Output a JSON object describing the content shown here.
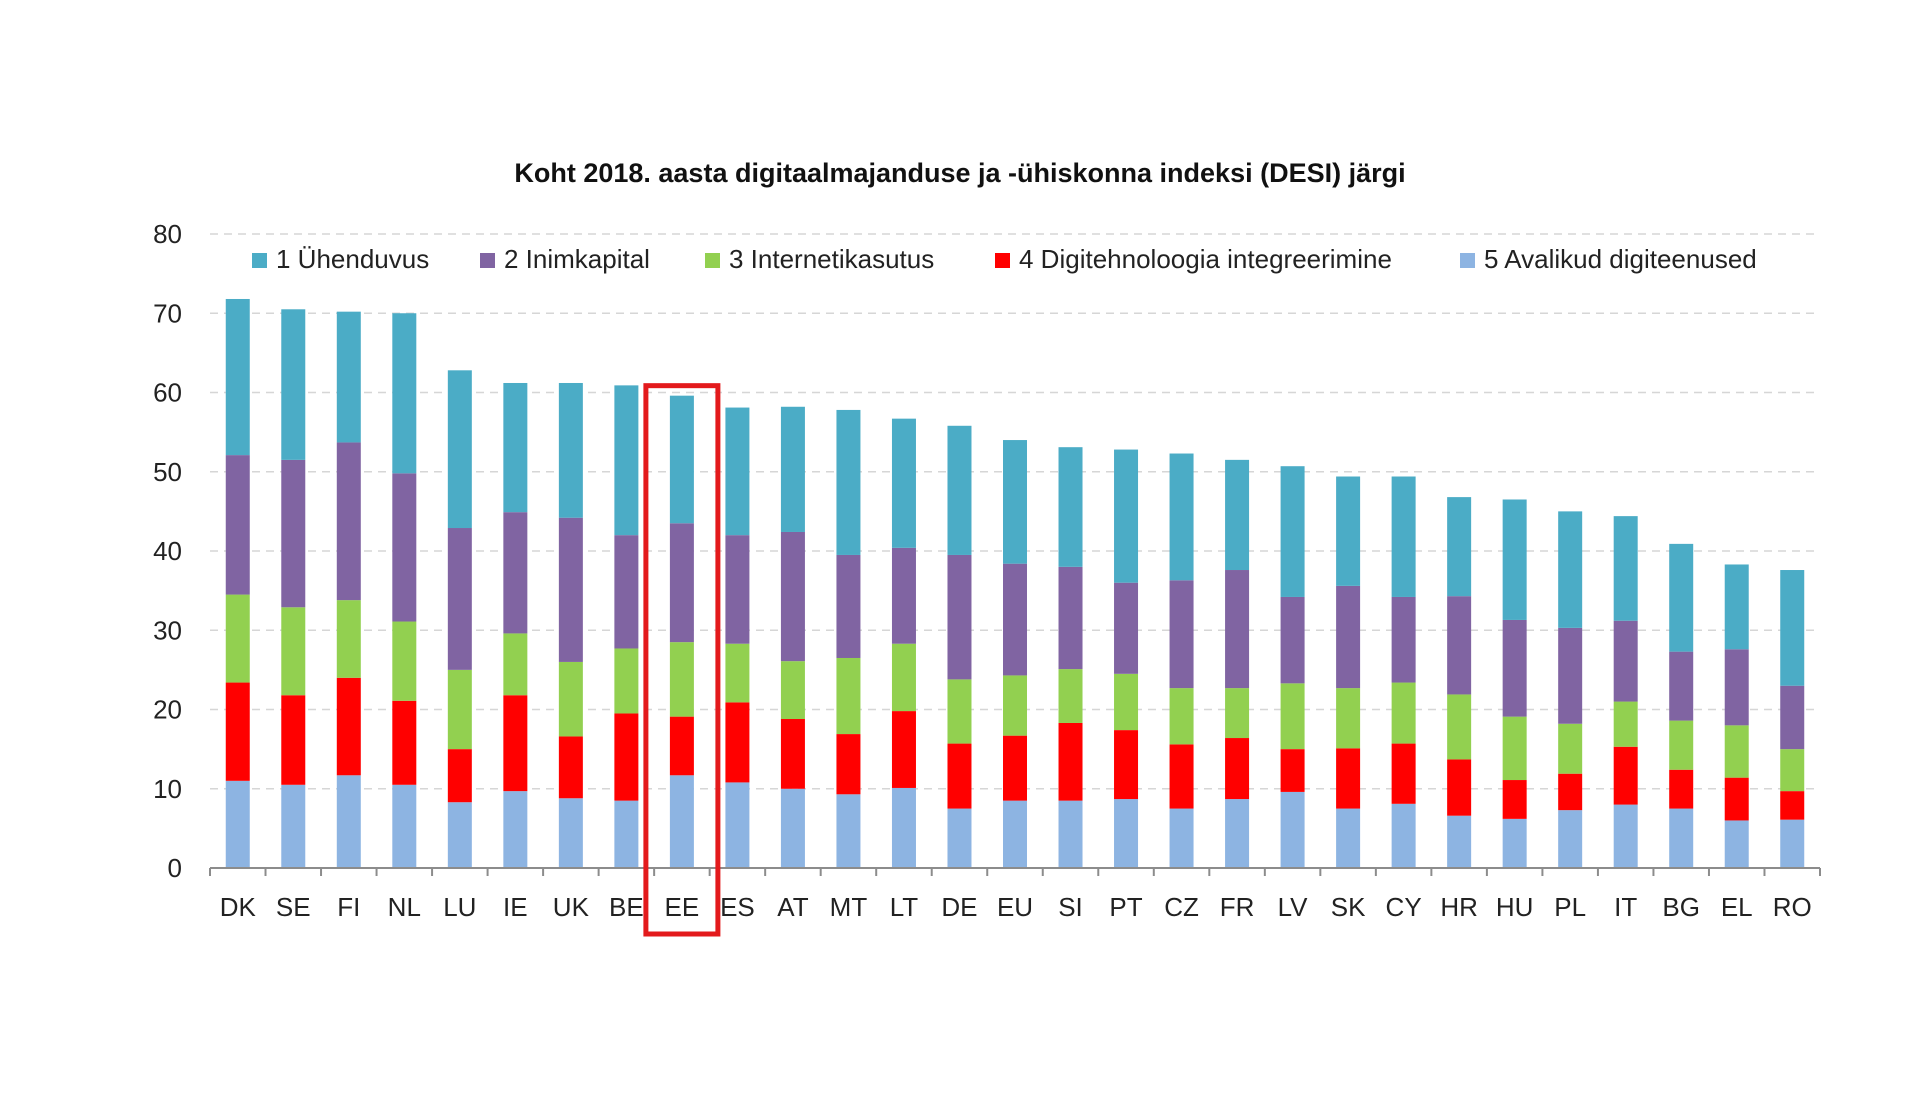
{
  "chart_data": {
    "type": "bar",
    "stacked": true,
    "title": "Koht 2018. aasta digitaalmajanduse ja  -ühiskonna indeksi (DESI) järgi",
    "xlabel": "",
    "ylabel": "",
    "ylim": [
      0,
      80
    ],
    "yticks": [
      0,
      10,
      20,
      30,
      40,
      50,
      60,
      70,
      80
    ],
    "grid": true,
    "legend_position": "top",
    "highlight_category": "EE",
    "highlight_color": "#e31a1c",
    "categories": [
      "DK",
      "SE",
      "FI",
      "NL",
      "LU",
      "IE",
      "UK",
      "BE",
      "EE",
      "ES",
      "AT",
      "MT",
      "LT",
      "DE",
      "EU",
      "SI",
      "PT",
      "CZ",
      "FR",
      "LV",
      "SK",
      "CY",
      "HR",
      "HU",
      "PL",
      "IT",
      "BG",
      "EL",
      "RO"
    ],
    "series": [
      {
        "name": "5 Avalikud digiteenused",
        "color": "#8db4e2",
        "values": [
          11.0,
          10.5,
          11.7,
          10.5,
          8.3,
          9.7,
          8.8,
          8.5,
          11.7,
          10.8,
          10.0,
          9.3,
          10.1,
          7.5,
          8.5,
          8.5,
          8.7,
          7.5,
          8.7,
          9.6,
          7.5,
          8.1,
          6.6,
          6.2,
          7.3,
          8.0,
          7.5,
          6.0,
          6.1
        ]
      },
      {
        "name": "4 Digitehnoloogia integreerimine",
        "color": "#ff0000",
        "values": [
          12.4,
          11.3,
          12.3,
          10.6,
          6.7,
          12.1,
          7.8,
          11.0,
          7.4,
          10.1,
          8.8,
          7.6,
          9.7,
          8.2,
          8.2,
          9.8,
          8.7,
          8.1,
          7.7,
          5.4,
          7.6,
          7.6,
          7.1,
          4.9,
          4.6,
          7.3,
          4.9,
          5.4,
          3.6
        ]
      },
      {
        "name": "3 Internetikasutus",
        "color": "#92d050",
        "values": [
          11.1,
          11.1,
          9.8,
          10.0,
          10.0,
          7.8,
          9.4,
          8.2,
          9.4,
          7.4,
          7.3,
          9.6,
          8.5,
          8.1,
          7.6,
          6.8,
          7.1,
          7.1,
          6.3,
          8.3,
          7.6,
          7.7,
          8.2,
          8.0,
          6.3,
          5.7,
          6.2,
          6.6,
          5.3
        ]
      },
      {
        "name": "2 Inimkapital",
        "color": "#8064a2",
        "values": [
          17.6,
          18.6,
          19.9,
          18.7,
          17.9,
          15.3,
          18.2,
          14.3,
          15.0,
          13.7,
          16.3,
          13.0,
          12.1,
          15.7,
          14.1,
          12.9,
          11.5,
          13.6,
          14.9,
          10.9,
          12.9,
          10.8,
          12.4,
          12.2,
          12.1,
          10.2,
          8.7,
          9.6,
          8.0
        ]
      },
      {
        "name": "1 Ühenduvus",
        "color": "#4bacc6",
        "values": [
          19.7,
          19.0,
          16.5,
          20.2,
          19.9,
          16.3,
          17.0,
          18.9,
          16.1,
          16.1,
          15.8,
          18.3,
          16.3,
          16.3,
          15.6,
          15.1,
          16.8,
          16.0,
          13.9,
          16.5,
          13.8,
          15.2,
          12.5,
          15.2,
          14.7,
          13.2,
          13.6,
          10.7,
          14.6
        ]
      }
    ]
  }
}
